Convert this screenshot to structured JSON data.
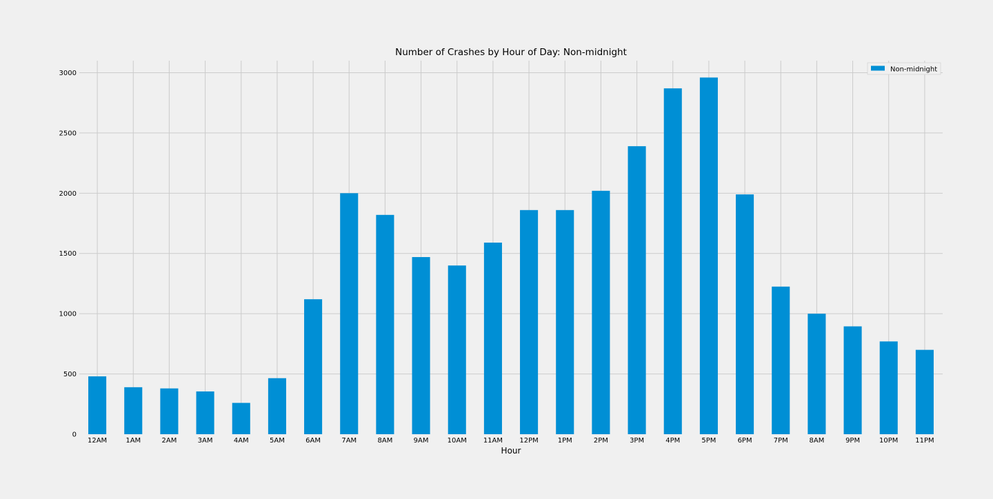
{
  "chart_data": {
    "type": "bar",
    "title": "Number of Crashes by Hour of Day: Non-midnight",
    "xlabel": "Hour",
    "ylabel": "",
    "categories": [
      "12AM",
      "1AM",
      "2AM",
      "3AM",
      "4AM",
      "5AM",
      "6AM",
      "7AM",
      "8AM",
      "9AM",
      "10AM",
      "11AM",
      "12PM",
      "1PM",
      "2PM",
      "3PM",
      "4PM",
      "5PM",
      "6PM",
      "7PM",
      "8AM",
      "9PM",
      "10PM",
      "11PM"
    ],
    "series": [
      {
        "name": "Non-midnight",
        "color": "#008fd5",
        "values": [
          480,
          390,
          380,
          355,
          260,
          465,
          1120,
          2000,
          1820,
          1470,
          1400,
          1590,
          1860,
          1860,
          2020,
          2390,
          2870,
          2960,
          1990,
          1225,
          1000,
          895,
          770,
          700
        ]
      }
    ],
    "yticks": [
      0,
      500,
      1000,
      1500,
      2000,
      2500,
      3000
    ],
    "ylim": [
      0,
      3100
    ],
    "grid": true,
    "legend_position": "top-right",
    "background": "#f0f0f0"
  }
}
